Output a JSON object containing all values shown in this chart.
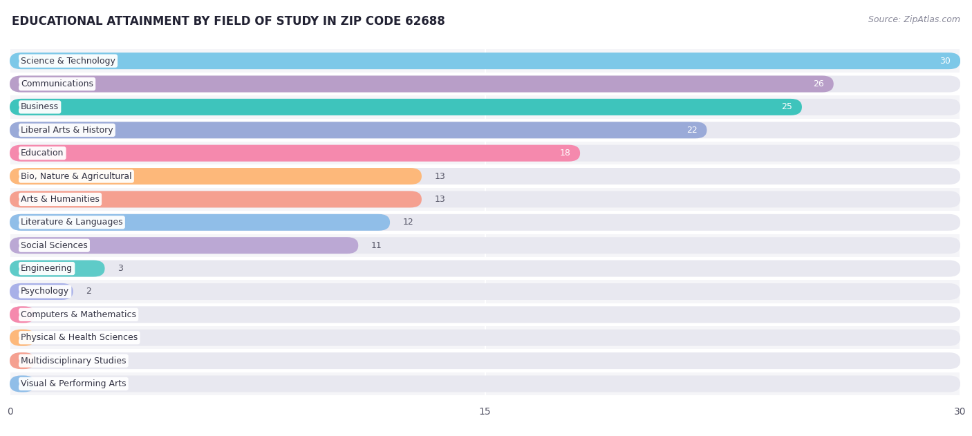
{
  "title": "EDUCATIONAL ATTAINMENT BY FIELD OF STUDY IN ZIP CODE 62688",
  "source": "Source: ZipAtlas.com",
  "categories": [
    "Science & Technology",
    "Communications",
    "Business",
    "Liberal Arts & History",
    "Education",
    "Bio, Nature & Agricultural",
    "Arts & Humanities",
    "Literature & Languages",
    "Social Sciences",
    "Engineering",
    "Psychology",
    "Computers & Mathematics",
    "Physical & Health Sciences",
    "Multidisciplinary Studies",
    "Visual & Performing Arts"
  ],
  "values": [
    30,
    26,
    25,
    22,
    18,
    13,
    13,
    12,
    11,
    3,
    2,
    0,
    0,
    0,
    0
  ],
  "bar_colors": [
    "#7DC8E8",
    "#B89EC8",
    "#3EC4BC",
    "#9AAAD8",
    "#F589AD",
    "#FDB87A",
    "#F5A090",
    "#90BEE8",
    "#BBA8D4",
    "#5ECBC8",
    "#A8B0E8",
    "#F589AD",
    "#FDB87A",
    "#F5A090",
    "#90BEE8"
  ],
  "xlim": [
    0,
    30
  ],
  "xticks": [
    0,
    15,
    30
  ],
  "background_color": "#ffffff",
  "bar_bg_color": "#E8E8F0",
  "row_bg_color": "#f5f5f8",
  "title_fontsize": 12,
  "source_fontsize": 9,
  "label_fontsize": 9,
  "value_fontsize": 9
}
